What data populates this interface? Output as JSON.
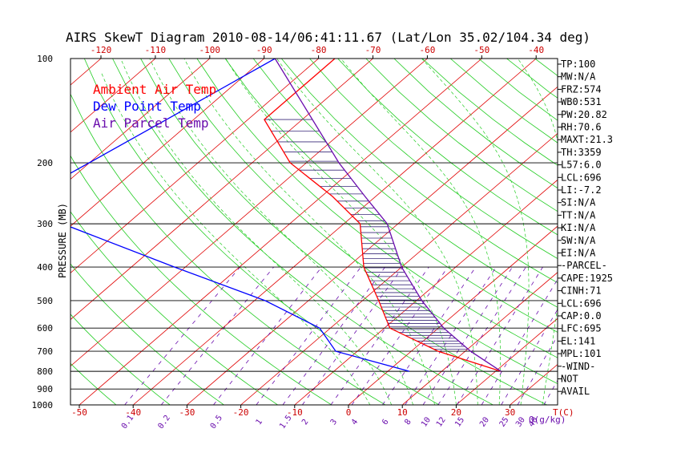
{
  "chart_data": {
    "type": "line",
    "title": "AIRS SkewT Diagram 2010-08-14/06:41:11.67 (Lat/Lon 35.02/104.34 deg)",
    "ylabel": "PRESSURE (MB)",
    "xlabel": "T(C)",
    "mixing_label": "Q(g/kg)",
    "pressure_levels": [
      100,
      200,
      300,
      400,
      500,
      600,
      700,
      800,
      900,
      1000
    ],
    "bottom_temp_ticks": [
      -50,
      -40,
      -30,
      -20,
      -10,
      0,
      10,
      20,
      30
    ],
    "top_temp_ticks": [
      -120,
      -110,
      -100,
      -90,
      -80,
      -70,
      -60,
      -50,
      -40
    ],
    "mixing_ratio_ticks": [
      "0.1",
      "0.2",
      "0.5",
      "1",
      "1.5",
      "2",
      "3",
      "4",
      "6",
      "8",
      "10",
      "12",
      "15",
      "20",
      "25",
      "30",
      "40"
    ],
    "legend": [
      {
        "label": "Ambient Air Temp",
        "color": "#ff0000"
      },
      {
        "label": "Dew Point Temp",
        "color": "#0000ff"
      },
      {
        "label": "Air Parcel Temp",
        "color": "#6a0dad"
      }
    ],
    "series": [
      {
        "name": "Ambient Air Temp",
        "color": "#ff0000",
        "points": [
          [
            100,
            -77
          ],
          [
            150,
            -77
          ],
          [
            200,
            -63
          ],
          [
            250,
            -48
          ],
          [
            300,
            -37
          ],
          [
            400,
            -27
          ],
          [
            500,
            -17
          ],
          [
            600,
            -9
          ],
          [
            700,
            5
          ],
          [
            800,
            21
          ]
        ]
      },
      {
        "name": "Dew Point Temp",
        "color": "#0000ff",
        "points": [
          [
            100,
            -88
          ],
          [
            150,
            -95
          ],
          [
            250,
            -104
          ],
          [
            300,
            -92
          ],
          [
            400,
            -62
          ],
          [
            500,
            -38
          ],
          [
            600,
            -22
          ],
          [
            700,
            -14
          ],
          [
            800,
            4
          ]
        ]
      },
      {
        "name": "Air Parcel Temp",
        "color": "#6a0dad",
        "points": [
          [
            100,
            -88
          ],
          [
            200,
            -54
          ],
          [
            250,
            -42
          ],
          [
            300,
            -32
          ],
          [
            400,
            -20
          ],
          [
            500,
            -9
          ],
          [
            600,
            1
          ],
          [
            700,
            11
          ],
          [
            800,
            21
          ]
        ]
      }
    ],
    "indices": [
      "TP:100",
      "MW:N/A",
      "FRZ:574",
      "WB0:531",
      "PW:20.82",
      "RH:70.6",
      "MAXT:21.3",
      "TH:3359",
      "L57:6.0",
      "LCL:696",
      "LI:-7.2",
      "SI:N/A",
      "TT:N/A",
      "KI:N/A",
      "SW:N/A",
      "EI:N/A",
      "-PARCEL-",
      "CAPE:1925",
      "CINH:71",
      "LCL:696",
      "CAP:0.0",
      "LFC:695",
      "EL:141",
      "MPL:101",
      "-WIND-",
      "NOT",
      "AVAIL"
    ]
  }
}
